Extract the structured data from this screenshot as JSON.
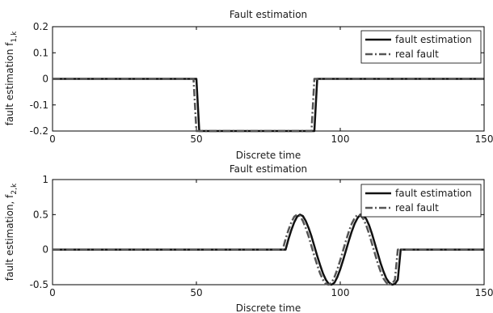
{
  "chart_data": [
    {
      "type": "line",
      "title": "Fault estimation",
      "xlabel": "Discrete time",
      "ylabel": "fault estimation f",
      "ylabel_sub": "1,k",
      "xlim": [
        0,
        150
      ],
      "ylim": [
        -0.2,
        0.2
      ],
      "xticks": [
        0,
        50,
        100,
        150
      ],
      "yticks": [
        -0.2,
        -0.1,
        0,
        0.1,
        0.2
      ],
      "ytick_labels": [
        "-0.2",
        "-0.1",
        "0",
        "0.1",
        "0.2"
      ],
      "legend_position": "top-right",
      "series": [
        {
          "name": "fault estimation",
          "style": "solid",
          "color": "#111111",
          "x": [
            0,
            50,
            51,
            91,
            92,
            150
          ],
          "y": [
            0,
            0,
            -0.2,
            -0.2,
            0,
            0
          ]
        },
        {
          "name": "real fault",
          "style": "dashdot",
          "color": "#555555",
          "x": [
            0,
            49,
            50,
            90,
            91,
            150
          ],
          "y": [
            0,
            0,
            -0.2,
            -0.2,
            0,
            0
          ]
        }
      ]
    },
    {
      "type": "line",
      "title": "Fault estimation",
      "xlabel": "Discrete time",
      "ylabel": "fault estimation, f",
      "ylabel_sub": "2,k",
      "xlim": [
        0,
        150
      ],
      "ylim": [
        -0.5,
        1
      ],
      "xticks": [
        0,
        50,
        100,
        150
      ],
      "yticks": [
        -0.5,
        0,
        0.5,
        1
      ],
      "ytick_labels": [
        "-0.5",
        "0",
        "0.5",
        "1"
      ],
      "legend_position": "top-right",
      "series": [
        {
          "name": "fault estimation",
          "style": "solid",
          "color": "#111111",
          "x": [
            0,
            81,
            82,
            83,
            84,
            85,
            86,
            87,
            88,
            89,
            90,
            91,
            92,
            93,
            94,
            95,
            96,
            97,
            98,
            99,
            100,
            101,
            102,
            103,
            104,
            105,
            106,
            107,
            108,
            109,
            110,
            111,
            112,
            113,
            114,
            115,
            116,
            117,
            118,
            119,
            120,
            121,
            150
          ],
          "y": [
            0,
            0,
            0.15,
            0.28,
            0.39,
            0.47,
            0.5,
            0.48,
            0.41,
            0.31,
            0.19,
            0.05,
            -0.09,
            -0.22,
            -0.34,
            -0.43,
            -0.49,
            -0.5,
            -0.47,
            -0.39,
            -0.28,
            -0.15,
            -0.01,
            0.13,
            0.26,
            0.37,
            0.45,
            0.5,
            0.49,
            0.44,
            0.35,
            0.23,
            0.09,
            -0.05,
            -0.19,
            -0.31,
            -0.41,
            -0.47,
            -0.5,
            -0.49,
            -0.43,
            0,
            0
          ]
        },
        {
          "name": "real fault",
          "style": "dashdot",
          "color": "#555555",
          "x": [
            0,
            80,
            81,
            82,
            83,
            84,
            85,
            86,
            87,
            88,
            89,
            90,
            91,
            92,
            93,
            94,
            95,
            96,
            97,
            98,
            99,
            100,
            101,
            102,
            103,
            104,
            105,
            106,
            107,
            108,
            109,
            110,
            111,
            112,
            113,
            114,
            115,
            116,
            117,
            118,
            119,
            120,
            150
          ],
          "y": [
            0,
            0,
            0.15,
            0.28,
            0.39,
            0.47,
            0.5,
            0.48,
            0.41,
            0.31,
            0.19,
            0.05,
            -0.09,
            -0.22,
            -0.34,
            -0.43,
            -0.49,
            -0.5,
            -0.47,
            -0.39,
            -0.28,
            -0.15,
            -0.01,
            0.13,
            0.26,
            0.37,
            0.45,
            0.5,
            0.49,
            0.44,
            0.35,
            0.23,
            0.09,
            -0.05,
            -0.19,
            -0.31,
            -0.41,
            -0.47,
            -0.5,
            -0.49,
            -0.43,
            0,
            0
          ]
        }
      ]
    }
  ]
}
